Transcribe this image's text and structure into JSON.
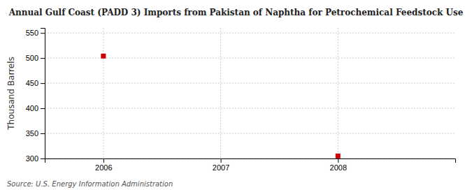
{
  "chart_data": {
    "type": "scatter",
    "title": "Annual Gulf Coast (PADD 3) Imports from Pakistan of Naphtha for Petrochemical Feedstock Use",
    "y_label": "Thousand Barrels",
    "source": "Source: U.S. Energy Information Administration",
    "x": [
      2006,
      2008
    ],
    "values": [
      504,
      305
    ],
    "color": "#cc0000",
    "marker": "square",
    "xlim": [
      2005.5,
      2009.0
    ],
    "ylim": [
      300,
      560
    ],
    "xticks": [
      2006,
      2007,
      2008
    ],
    "yticks": [
      300,
      350,
      400,
      450,
      500,
      550
    ],
    "grid": true
  }
}
